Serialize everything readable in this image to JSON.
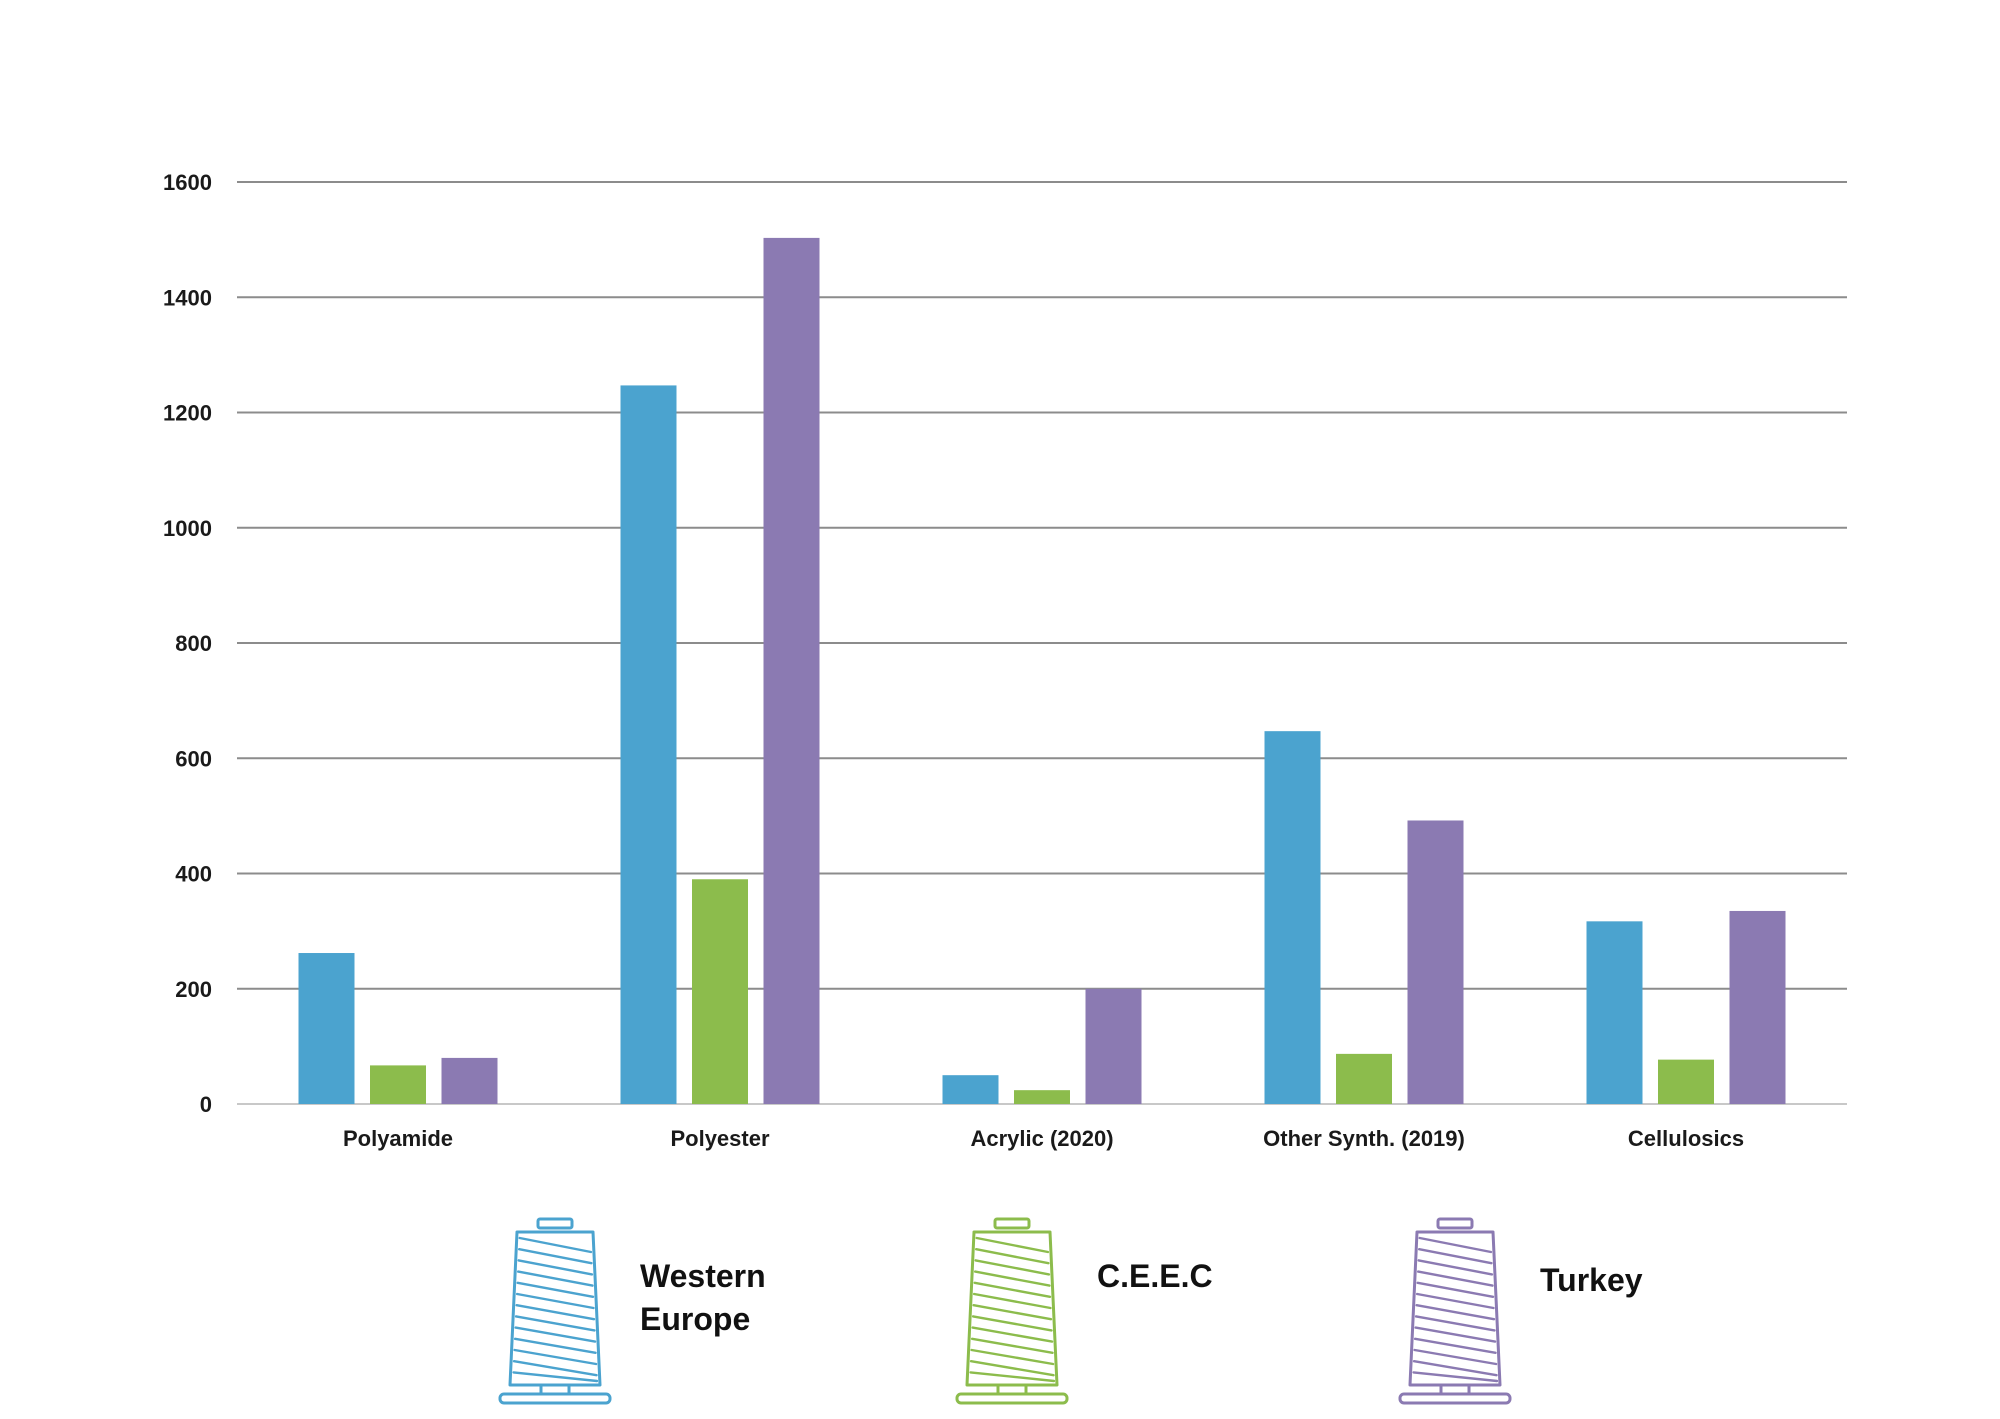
{
  "chart_data": {
    "type": "bar",
    "title": "",
    "xlabel": "",
    "ylabel": "",
    "ylim": [
      0,
      1600
    ],
    "yticks": [
      0,
      200,
      400,
      600,
      800,
      1000,
      1200,
      1400,
      1600
    ],
    "grid": true,
    "legend_position": "bottom",
    "categories": [
      "Polyamide",
      "Polyester",
      "Acrylic (2020)",
      "Other Synth. (2019)",
      "Cellulosics"
    ],
    "series": [
      {
        "name": "Western Europe",
        "legend_lines": [
          "Western",
          "Europe"
        ],
        "color": "#4BA3CF",
        "icon": "thread-spool-icon",
        "values": [
          262,
          1247,
          50,
          647,
          317
        ]
      },
      {
        "name": "C.E.E.C",
        "legend_lines": [
          "C.E.E.C"
        ],
        "color": "#8CBC4C",
        "icon": "thread-spool-icon",
        "values": [
          67,
          390,
          24,
          87,
          77
        ]
      },
      {
        "name": "Turkey",
        "legend_lines": [
          "Turkey"
        ],
        "color": "#8B7AB2",
        "icon": "thread-spool-icon",
        "values": [
          80,
          1503,
          200,
          492,
          335
        ]
      }
    ]
  }
}
